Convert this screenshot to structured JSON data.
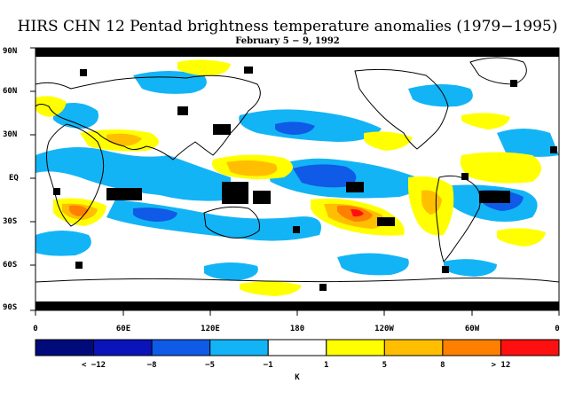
{
  "title": "HIRS CHN 12 Pentad brightness temperature anomalies (1979−1995)",
  "subtitle": "February 5 − 9, 1992",
  "lat_labels": [
    "90N",
    "60N",
    "30N",
    "EQ",
    "30S",
    "60S",
    "90S"
  ],
  "lon_labels": [
    "0",
    "60E",
    "120E",
    "180",
    "120W",
    "60W",
    "0"
  ],
  "colorbar": {
    "colors": [
      "#000a7a",
      "#0a14b8",
      "#0f5ae6",
      "#13b4f5",
      "#ffffff",
      "#ffff00",
      "#ffbf00",
      "#ff7f00",
      "#ff1010"
    ],
    "labels": [
      "< −12",
      "−8",
      "−5",
      "−1",
      "1",
      "5",
      "8",
      "> 12"
    ],
    "unit": "K"
  },
  "colors": {
    "land_outline": "#000000",
    "missing": "#000000"
  }
}
